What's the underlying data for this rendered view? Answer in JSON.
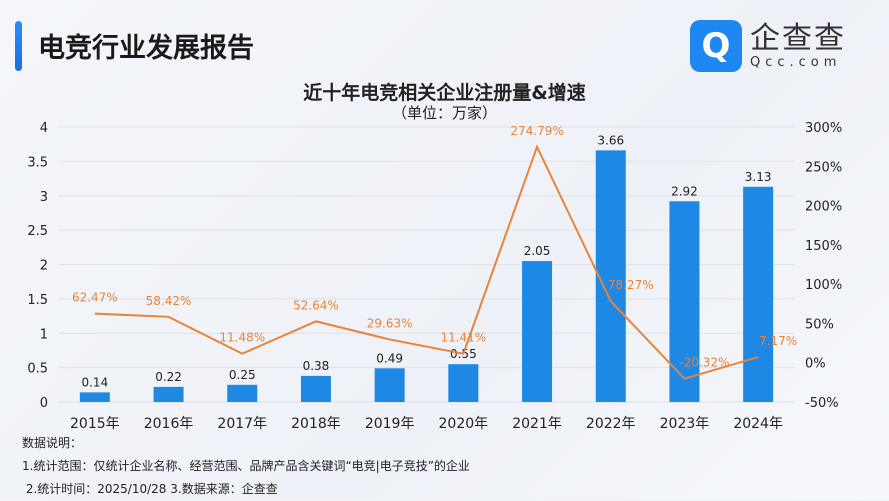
{
  "header": {
    "title": "电竞行业发展报告"
  },
  "logo": {
    "icon": "Qcc-logo-icon",
    "cn": "企查查",
    "en": "Qcc.com"
  },
  "chart_data": {
    "type": "bar+line",
    "title": "近十年电竞相关企业注册量&增速",
    "subtitle": "（单位：万家）",
    "categories": [
      "2015年",
      "2016年",
      "2017年",
      "2018年",
      "2019年",
      "2020年",
      "2021年",
      "2022年",
      "2023年",
      "2024年"
    ],
    "series": [
      {
        "type": "bar",
        "axis": "left",
        "values": [
          0.14,
          0.22,
          0.25,
          0.38,
          0.49,
          0.55,
          2.05,
          3.66,
          2.92,
          3.13
        ],
        "labels": [
          "0.14",
          "0.22",
          "0.25",
          "0.38",
          "0.49",
          "0.55",
          "2.05",
          "3.66",
          "2.92",
          "3.13"
        ],
        "color": "#1e88e5"
      },
      {
        "type": "line",
        "axis": "right",
        "values": [
          62.47,
          58.42,
          11.48,
          52.64,
          29.63,
          11.41,
          274.79,
          78.27,
          -20.32,
          7.17
        ],
        "labels": [
          "62.47%",
          "58.42%",
          "11.48%",
          "52.64%",
          "29.63%",
          "11.41%",
          "274.79%",
          "78.27%",
          "-20.32%",
          "7.17%"
        ],
        "color": "#e8843a"
      }
    ],
    "left_axis": {
      "ylim": [
        0,
        4
      ],
      "ticks": [
        "0",
        "0.5",
        "1",
        "1.5",
        "2",
        "2.5",
        "3",
        "3.5",
        "4"
      ]
    },
    "right_axis": {
      "ylim": [
        -50,
        300
      ],
      "ticks": [
        "-50%",
        "0%",
        "50%",
        "100%",
        "150%",
        "200%",
        "250%",
        "300%"
      ]
    },
    "grid": true
  },
  "notes": {
    "heading": "数据说明：",
    "line1": "1.统计范围：仅统计企业名称、经营范围、品牌产品含关键词“电竞|电子竞技”的企业",
    "line2": " 2.统计时间：2025/10/28 3.数据来源：企查查"
  }
}
